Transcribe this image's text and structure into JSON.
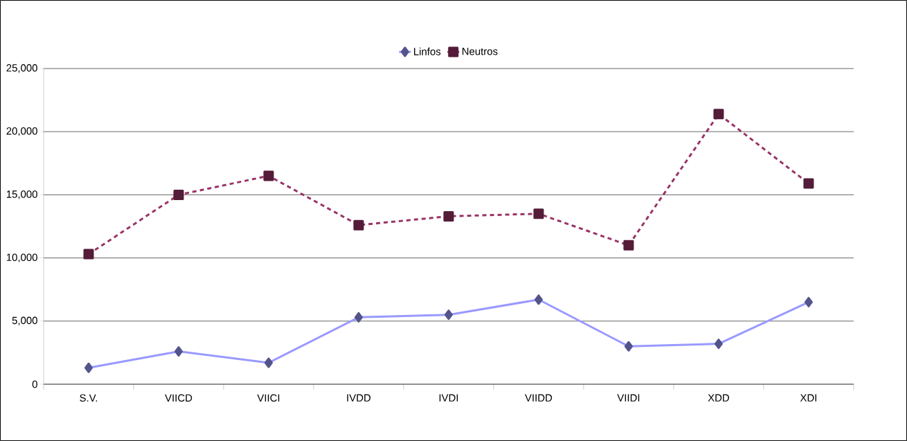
{
  "chart_data": {
    "type": "line",
    "categories": [
      "S.V.",
      "VIICD",
      "VIICI",
      "IVDD",
      "IVDI",
      "VIIDD",
      "VIIDI",
      "XDD",
      "XDI"
    ],
    "series": [
      {
        "name": "Linfos",
        "color": "#9999ff",
        "marker": "diamond",
        "line_style": "solid",
        "values": [
          1300,
          2600,
          1700,
          5300,
          5500,
          6700,
          3000,
          3200,
          6500
        ]
      },
      {
        "name": "Neutros",
        "color": "#993366",
        "marker": "square",
        "line_style": "dashed",
        "values": [
          10300,
          15000,
          16500,
          12600,
          13300,
          13500,
          11000,
          21400,
          15900
        ]
      }
    ],
    "ylim": [
      0,
      25000
    ],
    "yticks": [
      {
        "value": 0,
        "label": "0"
      },
      {
        "value": 5000,
        "label": "5,000"
      },
      {
        "value": 10000,
        "label": "10,000"
      },
      {
        "value": 15000,
        "label": "15,000"
      },
      {
        "value": 20000,
        "label": "20,000"
      },
      {
        "value": 25000,
        "label": "25,000"
      }
    ],
    "grid": "y",
    "legend": "top"
  }
}
